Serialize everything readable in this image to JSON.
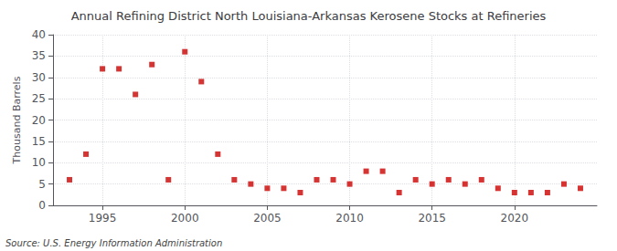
{
  "chart_data": {
    "type": "scatter",
    "title": "Annual Refining District North Louisiana-Arkansas Kerosene Stocks at Refineries",
    "ylabel": "Thousand Barrels",
    "annotations": [
      "Source: U.S. Energy Information Administration"
    ],
    "x": [
      1993,
      1994,
      1995,
      1996,
      1997,
      1998,
      1999,
      2000,
      2001,
      2002,
      2003,
      2004,
      2005,
      2006,
      2007,
      2008,
      2009,
      2010,
      2011,
      2012,
      2013,
      2014,
      2015,
      2016,
      2017,
      2018,
      2019,
      2020,
      2021,
      2022,
      2023,
      2024
    ],
    "values": [
      6,
      12,
      32,
      32,
      26,
      33,
      6,
      36,
      29,
      12,
      6,
      5,
      4,
      4,
      3,
      6,
      6,
      5,
      8,
      8,
      3,
      6,
      5,
      6,
      5,
      6,
      4,
      3,
      3,
      3,
      5,
      4
    ],
    "color": "#cc0000",
    "marker": "square",
    "xlim": [
      1992,
      2025
    ],
    "xticks": [
      1995,
      2000,
      2005,
      2010,
      2015,
      2020
    ],
    "ylim": [
      0,
      40
    ],
    "yticks": [
      0,
      5,
      10,
      15,
      20,
      25,
      30,
      35,
      40
    ],
    "grid": true
  }
}
